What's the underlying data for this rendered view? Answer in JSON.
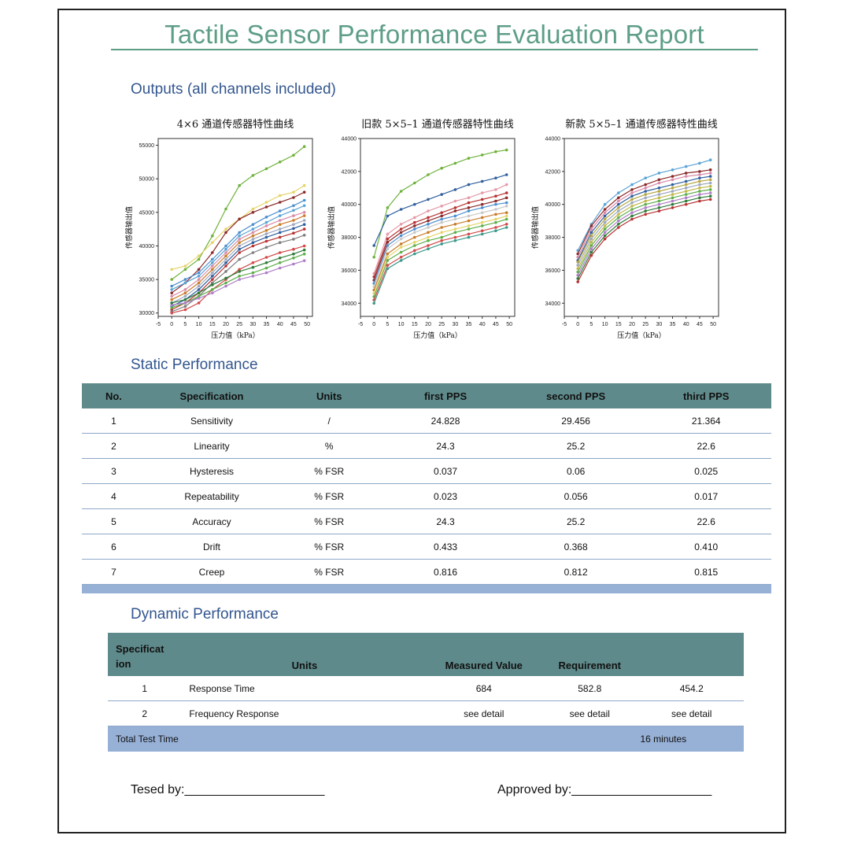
{
  "report": {
    "title": "Tactile Sensor Performance Evaluation Report",
    "outputs_heading": "Outputs (all channels included)",
    "static_heading": "Static Performance",
    "dynamic_heading": "Dynamic Performance"
  },
  "chart_data": [
    {
      "type": "line",
      "title": "4×6 通道传感器特性曲线",
      "xlabel": "压力值（kPa）",
      "ylabel": "传感器输出值",
      "xlim": [
        -5,
        52
      ],
      "ylim": [
        29500,
        56000
      ],
      "x_ticks": [
        "-5",
        "0",
        "5",
        "10",
        "15",
        "20",
        "25",
        "30",
        "35",
        "40",
        "45",
        "50"
      ],
      "y_ticks": [
        "30000",
        "35000",
        "40000",
        "45000",
        "50000",
        "55000"
      ],
      "x": [
        0,
        5,
        10,
        15,
        20,
        25,
        30,
        35,
        40,
        45,
        49
      ],
      "series": [
        {
          "color": "#6fb23c",
          "values": [
            35000,
            36500,
            38000,
            41500,
            45500,
            49000,
            50500,
            51500,
            52500,
            53500,
            54800
          ]
        },
        {
          "color": "#e5d46a",
          "values": [
            36500,
            37000,
            38500,
            40500,
            42500,
            44000,
            45500,
            46500,
            47500,
            48000,
            49000
          ]
        },
        {
          "color": "#8c2a2a",
          "values": [
            33000,
            34500,
            36500,
            39000,
            42000,
            44000,
            45000,
            45800,
            46500,
            47200,
            48000
          ]
        },
        {
          "color": "#4c8fcf",
          "values": [
            34000,
            35000,
            36000,
            38000,
            40000,
            42000,
            43200,
            44300,
            45200,
            46000,
            46800
          ]
        },
        {
          "color": "#5aa4d6",
          "values": [
            33500,
            34500,
            35500,
            37500,
            39500,
            41500,
            42500,
            43500,
            44500,
            45300,
            46000
          ]
        },
        {
          "color": "#d98aa8",
          "values": [
            32500,
            33500,
            35000,
            37000,
            39000,
            41000,
            42000,
            43000,
            43800,
            44500,
            45000
          ]
        },
        {
          "color": "#c97c2b",
          "values": [
            32000,
            33000,
            34500,
            36500,
            38500,
            40500,
            41500,
            42300,
            43200,
            43800,
            44500
          ]
        },
        {
          "color": "#9fa8c0",
          "values": [
            31500,
            32500,
            34000,
            36000,
            38000,
            40000,
            41000,
            41800,
            42500,
            43200,
            43800
          ]
        },
        {
          "color": "#2f5f9e",
          "values": [
            31000,
            32000,
            33500,
            35500,
            37500,
            39500,
            40500,
            41300,
            42000,
            42600,
            43200
          ]
        },
        {
          "color": "#b83232",
          "values": [
            30500,
            31500,
            33000,
            35000,
            37000,
            39000,
            40000,
            40700,
            41300,
            41900,
            42500
          ]
        },
        {
          "color": "#7d7d7d",
          "values": [
            30200,
            31000,
            32500,
            34500,
            36200,
            38000,
            39000,
            39800,
            40500,
            41000,
            41600
          ]
        },
        {
          "color": "#d24a4a",
          "values": [
            30000,
            30500,
            31500,
            33500,
            35000,
            36500,
            37500,
            38300,
            39000,
            39500,
            40000
          ]
        },
        {
          "color": "#5fae4a",
          "values": [
            30800,
            31500,
            32500,
            33500,
            34500,
            35500,
            36000,
            36700,
            37500,
            38200,
            38800
          ]
        },
        {
          "color": "#b07fc7",
          "values": [
            31200,
            31500,
            32200,
            33000,
            34000,
            35000,
            35500,
            36000,
            36700,
            37300,
            37800
          ]
        },
        {
          "color": "#2f7d3a",
          "values": [
            31500,
            32000,
            33000,
            34200,
            35200,
            36200,
            36800,
            37500,
            38200,
            38800,
            39400
          ]
        }
      ]
    },
    {
      "type": "line",
      "title": "旧款 5×5–1 通道传感器特性曲线",
      "xlabel": "压力值（kPa）",
      "ylabel": "传感器输出值",
      "xlim": [
        -5,
        52
      ],
      "ylim": [
        33200,
        44000
      ],
      "x_ticks": [
        "-5",
        "0",
        "5",
        "10",
        "15",
        "20",
        "25",
        "30",
        "35",
        "40",
        "45",
        "50"
      ],
      "y_ticks": [
        "34000",
        "36000",
        "38000",
        "40000",
        "42000",
        "44000"
      ],
      "x": [
        0,
        5,
        10,
        15,
        20,
        25,
        30,
        35,
        40,
        45,
        49
      ],
      "series": [
        {
          "color": "#6fb23c",
          "values": [
            36800,
            39800,
            40800,
            41300,
            41800,
            42200,
            42500,
            42800,
            43000,
            43200,
            43300
          ]
        },
        {
          "color": "#2f5f9e",
          "values": [
            37500,
            39300,
            39700,
            40000,
            40300,
            40600,
            40900,
            41200,
            41400,
            41600,
            41800
          ]
        },
        {
          "color": "#e59aa8",
          "values": [
            35800,
            38200,
            38800,
            39200,
            39600,
            39900,
            40200,
            40400,
            40700,
            40900,
            41200
          ]
        },
        {
          "color": "#b83232",
          "values": [
            35600,
            37900,
            38500,
            38900,
            39200,
            39500,
            39800,
            40100,
            40300,
            40500,
            40700
          ]
        },
        {
          "color": "#8c2a2a",
          "values": [
            35400,
            37700,
            38300,
            38700,
            39000,
            39300,
            39600,
            39800,
            40000,
            40200,
            40400
          ]
        },
        {
          "color": "#4c8fcf",
          "values": [
            35200,
            37500,
            38100,
            38500,
            38800,
            39100,
            39300,
            39600,
            39800,
            40000,
            40100
          ]
        },
        {
          "color": "#c8c8c8",
          "values": [
            35000,
            37300,
            37900,
            38300,
            38600,
            38900,
            39100,
            39300,
            39500,
            39700,
            39900
          ]
        },
        {
          "color": "#c97c2b",
          "values": [
            34800,
            37000,
            37600,
            38000,
            38300,
            38600,
            38800,
            39000,
            39200,
            39400,
            39500
          ]
        },
        {
          "color": "#e5d46a",
          "values": [
            34600,
            36800,
            37400,
            37700,
            38000,
            38300,
            38500,
            38700,
            38900,
            39100,
            39300
          ]
        },
        {
          "color": "#5fae4a",
          "values": [
            34400,
            36600,
            37100,
            37500,
            37800,
            38000,
            38300,
            38500,
            38700,
            38900,
            39100
          ]
        },
        {
          "color": "#d24a4a",
          "values": [
            34200,
            36300,
            36800,
            37200,
            37500,
            37800,
            38000,
            38200,
            38400,
            38600,
            38800
          ]
        },
        {
          "color": "#3b9a8a",
          "values": [
            34000,
            36100,
            36600,
            37000,
            37300,
            37600,
            37800,
            38000,
            38200,
            38400,
            38600
          ]
        }
      ]
    },
    {
      "type": "line",
      "title": "新款 5×5–1 通道传感器特性曲线",
      "xlabel": "压力值（kPa）",
      "ylabel": "传感器输出值",
      "xlim": [
        -5,
        52
      ],
      "ylim": [
        33200,
        44000
      ],
      "x_ticks": [
        "-5",
        "0",
        "5",
        "10",
        "15",
        "20",
        "25",
        "30",
        "35",
        "40",
        "45",
        "50"
      ],
      "y_ticks": [
        "34000",
        "36000",
        "38000",
        "40000",
        "42000",
        "44000"
      ],
      "x": [
        0,
        5,
        10,
        15,
        20,
        25,
        30,
        35,
        40,
        45,
        49
      ],
      "series": [
        {
          "color": "#5aa4d6",
          "values": [
            37200,
            38800,
            40000,
            40700,
            41200,
            41600,
            41900,
            42100,
            42300,
            42500,
            42700
          ]
        },
        {
          "color": "#8c2a2a",
          "values": [
            37000,
            38700,
            39700,
            40400,
            40900,
            41200,
            41500,
            41700,
            41900,
            42000,
            42100
          ]
        },
        {
          "color": "#d98aa8",
          "values": [
            36800,
            38500,
            39500,
            40200,
            40700,
            41000,
            41300,
            41500,
            41700,
            41800,
            41900
          ]
        },
        {
          "color": "#2f5f9e",
          "values": [
            36600,
            38300,
            39300,
            40000,
            40500,
            40800,
            41000,
            41200,
            41400,
            41600,
            41700
          ]
        },
        {
          "color": "#b5a642",
          "values": [
            36500,
            38100,
            39100,
            39800,
            40300,
            40600,
            40800,
            41000,
            41200,
            41400,
            41500
          ]
        },
        {
          "color": "#9fa8c0",
          "values": [
            36300,
            37900,
            38900,
            39600,
            40100,
            40400,
            40600,
            40800,
            41000,
            41200,
            41300
          ]
        },
        {
          "color": "#c0b84a",
          "values": [
            36100,
            37700,
            38700,
            39400,
            39900,
            40200,
            40400,
            40600,
            40800,
            41000,
            41100
          ]
        },
        {
          "color": "#5fae4a",
          "values": [
            35900,
            37500,
            38500,
            39200,
            39700,
            40000,
            40200,
            40400,
            40600,
            40800,
            40900
          ]
        },
        {
          "color": "#b07fc7",
          "values": [
            35700,
            37300,
            38300,
            39000,
            39500,
            39800,
            40000,
            40200,
            40400,
            40600,
            40700
          ]
        },
        {
          "color": "#2f7d3a",
          "values": [
            35500,
            37100,
            38100,
            38800,
            39300,
            39600,
            39800,
            40000,
            40200,
            40400,
            40500
          ]
        },
        {
          "color": "#b83232",
          "values": [
            35300,
            36900,
            37900,
            38600,
            39100,
            39400,
            39600,
            39800,
            40000,
            40200,
            40300
          ]
        }
      ]
    }
  ],
  "static_table": {
    "headers": [
      "No.",
      "Specification",
      "Units",
      "first PPS",
      "second PPS",
      "third PPS"
    ],
    "rows": [
      [
        "1",
        "Sensitivity",
        "/",
        "24.828",
        "29.456",
        "21.364"
      ],
      [
        "2",
        "Linearity",
        "%",
        "24.3",
        "25.2",
        "22.6"
      ],
      [
        "3",
        "Hysteresis",
        "% FSR",
        "0.037",
        "0.06",
        "0.025"
      ],
      [
        "4",
        "Repeatability",
        "% FSR",
        "0.023",
        "0.056",
        "0.017"
      ],
      [
        "5",
        "Accuracy",
        "% FSR",
        "24.3",
        "25.2",
        "22.6"
      ],
      [
        "6",
        "Drift",
        "% FSR",
        "0.433",
        "0.368",
        "0.410"
      ],
      [
        "7",
        "Creep",
        "% FSR",
        "0.816",
        "0.812",
        "0.815"
      ]
    ]
  },
  "dynamic_table": {
    "headers": [
      "Specificat\nion",
      "Units",
      "Measured Value",
      "Requirement",
      ""
    ],
    "rows": [
      [
        "1",
        "Response Time",
        "684",
        "582.8",
        "454.2"
      ],
      [
        "2",
        "Frequency Response",
        "see detail",
        "see detail",
        "see detail"
      ]
    ],
    "total_label": "Total Test Time",
    "total_value": "16 minutes"
  },
  "signatures": {
    "tested_label": "Tesed by:____________________",
    "approved_label": "Approved by:____________________"
  },
  "colors": {
    "title": "#5e9e86",
    "section": "#33568f",
    "table_header": "#5f8a8b",
    "table_footer": "#96b0d6"
  }
}
